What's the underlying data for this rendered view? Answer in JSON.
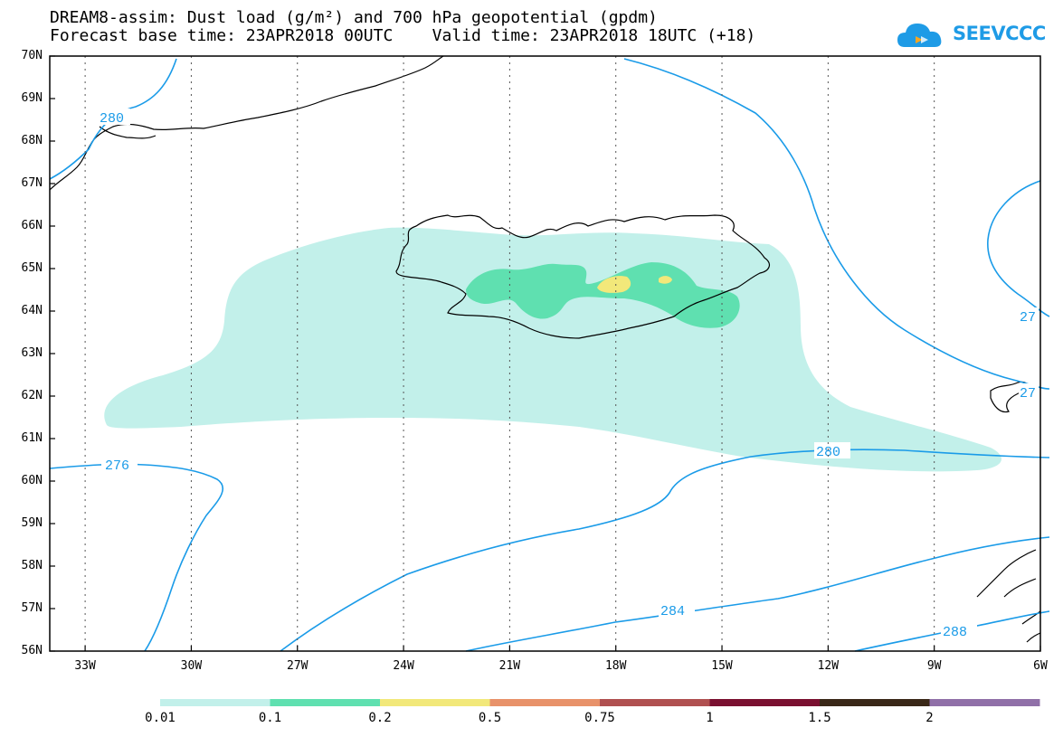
{
  "header": {
    "title_line1": "DREAM8-assim: Dust load (g/m²) and 700 hPa geopotential (gpdm)",
    "title_line2": "Forecast base time: 23APR2018 00UTC    Valid time: 23APR2018 18UTC (+18)",
    "logo_text": "SEEVCCC"
  },
  "map": {
    "lat_labels": [
      "70N",
      "69N",
      "68N",
      "67N",
      "66N",
      "65N",
      "64N",
      "63N",
      "62N",
      "61N",
      "60N",
      "59N",
      "58N",
      "57N",
      "56N"
    ],
    "lon_labels": [
      "33W",
      "30W",
      "27W",
      "24W",
      "21W",
      "18W",
      "15W",
      "12W",
      "9W",
      "6W"
    ],
    "contour_labels": [
      "280",
      "276",
      "280",
      "284",
      "288",
      "27",
      "27"
    ],
    "contour_color": "#1a9be8",
    "coast_color": "#000000"
  },
  "colorbar": {
    "labels": [
      "0.01",
      "0.1",
      "0.2",
      "0.5",
      "0.75",
      "1",
      "1.5",
      "2"
    ],
    "colors": [
      "#c2f0ea",
      "#5fe0b0",
      "#f2e87a",
      "#e8926a",
      "#b05050",
      "#7a1030",
      "#3a2818",
      "#9070a8"
    ]
  }
}
